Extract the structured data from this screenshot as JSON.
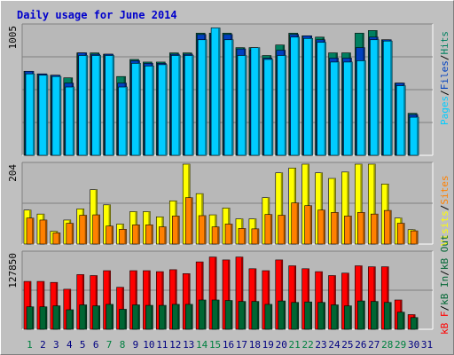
{
  "title": "Daily usage for June 2014",
  "colors": {
    "background": "#c0c0c0",
    "panel": "#b8b8b8",
    "title": "#0000cc",
    "hits": "#008060",
    "files": "#0040c0",
    "pages": "#00ccff",
    "visits": "#ffff00",
    "sites": "#ff8000",
    "kb_in": "#006633",
    "kb_f": "#ff0000",
    "weekend_label": "#008040",
    "weekday_label": "#000080",
    "sep_slash": "#000000"
  },
  "chart_data": [
    {
      "type": "bar",
      "panel": "top",
      "ymax_label": "1005",
      "legend": [
        "Pages",
        "/",
        "Files",
        "/",
        "Hits"
      ],
      "categories": [
        "1",
        "2",
        "3",
        "4",
        "5",
        "6",
        "7",
        "8",
        "9",
        "10",
        "11",
        "12",
        "13",
        "14",
        "15",
        "16",
        "17",
        "18",
        "19",
        "20",
        "21",
        "22",
        "23",
        "24",
        "25",
        "26",
        "27",
        "28",
        "29",
        "30",
        "31"
      ],
      "series": [
        {
          "name": "Hits",
          "values": [
            640,
            620,
            610,
            590,
            780,
            780,
            770,
            600,
            730,
            710,
            710,
            780,
            780,
            930,
            930,
            930,
            820,
            820,
            760,
            840,
            930,
            910,
            900,
            780,
            780,
            930,
            950,
            880,
            550,
            320,
            null
          ]
        },
        {
          "name": "Files",
          "values": [
            640,
            620,
            610,
            550,
            780,
            770,
            770,
            550,
            720,
            700,
            700,
            770,
            770,
            920,
            920,
            920,
            810,
            800,
            740,
            800,
            920,
            910,
            880,
            740,
            740,
            820,
            900,
            880,
            550,
            310,
            null
          ]
        },
        {
          "name": "Pages",
          "values": [
            620,
            610,
            600,
            520,
            760,
            760,
            760,
            520,
            700,
            680,
            690,
            760,
            760,
            880,
            970,
            880,
            760,
            820,
            730,
            760,
            900,
            890,
            860,
            710,
            710,
            720,
            880,
            870,
            530,
            290,
            null
          ]
        }
      ]
    },
    {
      "type": "bar",
      "panel": "middle",
      "ymax_label": "204",
      "legend": [
        "Visits",
        "/",
        "Sites"
      ],
      "categories": [
        "1",
        "2",
        "3",
        "4",
        "5",
        "6",
        "7",
        "8",
        "9",
        "10",
        "11",
        "12",
        "13",
        "14",
        "15",
        "16",
        "17",
        "18",
        "19",
        "20",
        "21",
        "22",
        "23",
        "24",
        "25",
        "26",
        "27",
        "28",
        "29",
        "30",
        "31"
      ],
      "series": [
        {
          "name": "Visits",
          "values": [
            85,
            75,
            32,
            60,
            88,
            136,
            98,
            50,
            81,
            81,
            68,
            108,
            200,
            126,
            73,
            90,
            63,
            63,
            116,
            178,
            190,
            204,
            178,
            164,
            180,
            200,
            200,
            150,
            65,
            36,
            null
          ]
        },
        {
          "name": "Sites",
          "values": [
            65,
            60,
            28,
            52,
            72,
            73,
            45,
            37,
            48,
            48,
            43,
            70,
            116,
            71,
            43,
            50,
            39,
            38,
            74,
            72,
            103,
            96,
            85,
            79,
            70,
            79,
            75,
            84,
            52,
            33,
            null
          ]
        }
      ]
    },
    {
      "type": "bar",
      "panel": "bottom",
      "ymax_label": "127850",
      "legend": [
        "kB F",
        "/",
        "kB In",
        "/",
        "kB Out"
      ],
      "categories": [
        "1",
        "2",
        "3",
        "4",
        "5",
        "6",
        "7",
        "8",
        "9",
        "10",
        "11",
        "12",
        "13",
        "14",
        "15",
        "16",
        "17",
        "18",
        "19",
        "20",
        "21",
        "22",
        "23",
        "24",
        "25",
        "26",
        "27",
        "28",
        "29",
        "30",
        "31"
      ],
      "series": [
        {
          "name": "kB F",
          "values": [
            98,
            98,
            96,
            82,
            112,
            110,
            120,
            86,
            120,
            120,
            118,
            122,
            114,
            138,
            148,
            142,
            148,
            124,
            120,
            142,
            130,
            124,
            118,
            110,
            115,
            130,
            128,
            128,
            60,
            30,
            null
          ]
        },
        {
          "name": "kB In",
          "values": [
            46,
            46,
            48,
            40,
            50,
            48,
            51,
            41,
            50,
            49,
            49,
            51,
            51,
            60,
            60,
            59,
            57,
            57,
            51,
            58,
            55,
            56,
            55,
            50,
            48,
            58,
            57,
            55,
            35,
            24,
            null
          ]
        }
      ]
    }
  ]
}
